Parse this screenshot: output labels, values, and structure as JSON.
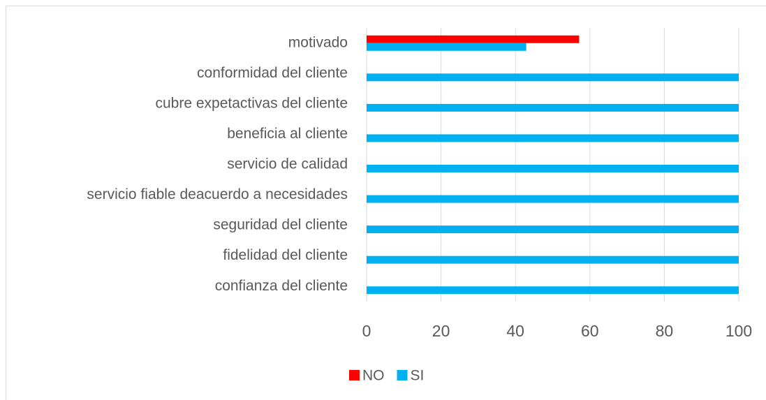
{
  "chart_data": {
    "type": "bar",
    "orientation": "horizontal",
    "categories": [
      "motivado",
      "conformidad del cliente",
      "cubre expetactivas del cliente",
      "beneficia al cliente",
      "servicio de calidad",
      "servicio fiable deacuerdo a necesidades",
      "seguridad del cliente ",
      "fidelidad del cliente",
      "confianza del cliente"
    ],
    "series": [
      {
        "name": "NO",
        "color": "#ff0000",
        "values": [
          57.1,
          0,
          0,
          0,
          0,
          0,
          0,
          0,
          0
        ]
      },
      {
        "name": "SI",
        "color": "#00b0f0",
        "values": [
          42.9,
          100,
          100,
          100,
          100,
          100,
          100,
          100,
          100
        ]
      }
    ],
    "xlim": [
      0,
      100
    ],
    "xticks": [
      0,
      20,
      40,
      60,
      80,
      100
    ],
    "grid": true,
    "legend": "bottom"
  }
}
